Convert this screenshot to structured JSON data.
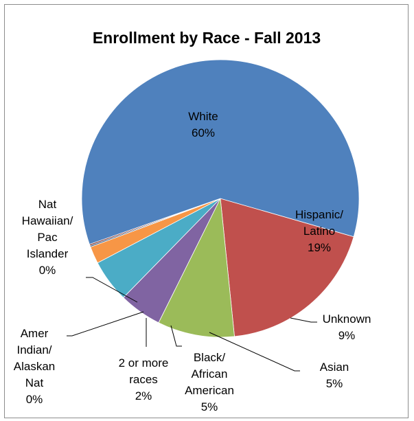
{
  "chart_data": {
    "type": "pie",
    "title": "Enrollment by Race - Fall 2013",
    "categories": [
      "White",
      "Hispanic/Latino",
      "Unknown",
      "Asian",
      "Black/African American",
      "2 or more races",
      "Amer Indian/Alaskan Nat",
      "Nat Hawaiian/Pac Islander"
    ],
    "values": [
      60,
      19,
      9,
      5,
      5,
      2,
      0,
      0
    ],
    "percent_labels": [
      "60%",
      "19%",
      "9%",
      "5%",
      "5%",
      "2%",
      "0%",
      "0%"
    ],
    "label_lines": [
      [
        "White"
      ],
      [
        "Hispanic/",
        "Latino"
      ],
      [
        "Unknown"
      ],
      [
        "Asian"
      ],
      [
        "Black/",
        "African",
        "American"
      ],
      [
        "2 or more",
        "races"
      ],
      [
        "Amer",
        "Indian/",
        "Alaskan",
        "Nat"
      ],
      [
        "Nat",
        "Hawaiian/",
        "Pac",
        "Islander"
      ]
    ],
    "colors": [
      "#4f81bd",
      "#c0504d",
      "#9bbb59",
      "#8064a2",
      "#4bacc6",
      "#f79646",
      "#2c4d75",
      "#772c2a"
    ],
    "legend": "none",
    "data_labels": "category and percent"
  }
}
